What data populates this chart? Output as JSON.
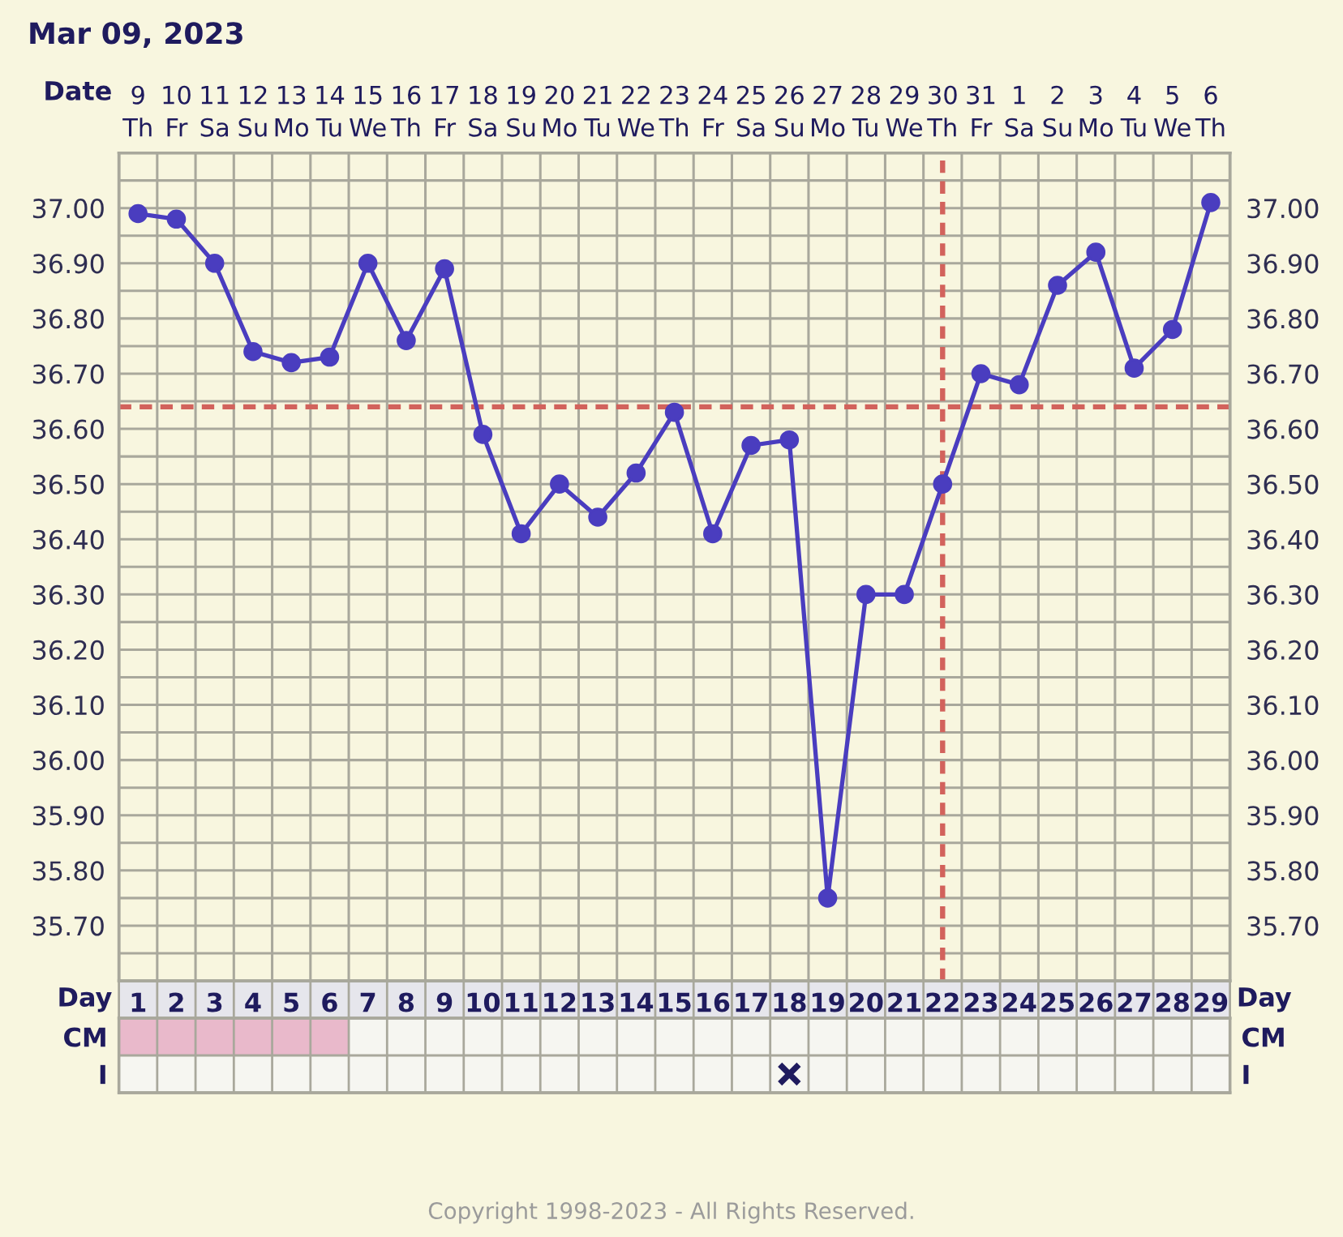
{
  "chart_data": [
    {
      "type": "line",
      "title": "Mar 09, 2023",
      "xlabel": "Day",
      "x2label": "Date",
      "x": [
        1,
        2,
        3,
        4,
        5,
        6,
        7,
        8,
        9,
        10,
        11,
        12,
        13,
        14,
        15,
        16,
        17,
        18,
        19,
        20,
        21,
        22,
        23,
        24,
        25,
        26,
        27,
        28,
        29
      ],
      "series": [
        {
          "color": "#4a3dbf",
          "values": [
            36.99,
            36.98,
            36.9,
            36.74,
            36.72,
            36.73,
            36.9,
            36.76,
            36.89,
            36.59,
            36.41,
            36.5,
            36.44,
            36.52,
            36.63,
            36.41,
            36.57,
            36.58,
            35.75,
            36.3,
            36.3,
            36.5,
            36.7,
            36.68,
            36.86,
            36.92,
            36.71,
            36.78,
            37.01
          ]
        }
      ],
      "xlim": [
        0.5,
        29.5
      ],
      "xticks": [
        1,
        2,
        3,
        4,
        5,
        6,
        7,
        8,
        9,
        10,
        11,
        12,
        13,
        14,
        15,
        16,
        17,
        18,
        19,
        20,
        21,
        22,
        23,
        24,
        25,
        26,
        27,
        28,
        29
      ],
      "x2lim": [
        "2023-03-08T12:00",
        "2023-04-06T12:00"
      ],
      "x2ticks": [
        {
          "value": "2023-03-09",
          "label": "9\nTh"
        },
        {
          "value": "2023-03-10",
          "label": "10\nFr"
        },
        {
          "value": "2023-03-11",
          "label": "11\nSa"
        },
        {
          "value": "2023-03-12",
          "label": "12\nSu"
        },
        {
          "value": "2023-03-13",
          "label": "13\nMo"
        },
        {
          "value": "2023-03-14",
          "label": "14\nTu"
        },
        {
          "value": "2023-03-15",
          "label": "15\nWe"
        },
        {
          "value": "2023-03-16",
          "label": "16\nTh"
        },
        {
          "value": "2023-03-17",
          "label": "17\nFr"
        },
        {
          "value": "2023-03-18",
          "label": "18\nSa"
        },
        {
          "value": "2023-03-19",
          "label": "19\nSu"
        },
        {
          "value": "2023-03-20",
          "label": "20\nMo"
        },
        {
          "value": "2023-03-21",
          "label": "21\nTu"
        },
        {
          "value": "2023-03-22",
          "label": "22\nWe"
        },
        {
          "value": "2023-03-23",
          "label": "23\nTh"
        },
        {
          "value": "2023-03-24",
          "label": "24\nFr"
        },
        {
          "value": "2023-03-25",
          "label": "25\nSa"
        },
        {
          "value": "2023-03-26",
          "label": "26\nSu"
        },
        {
          "value": "2023-03-27",
          "label": "27\nMo"
        },
        {
          "value": "2023-03-28",
          "label": "28\nTu"
        },
        {
          "value": "2023-03-29",
          "label": "29\nWe"
        },
        {
          "value": "2023-03-30",
          "label": "30\nTh"
        },
        {
          "value": "2023-03-31",
          "label": "31\nFr"
        },
        {
          "value": "2023-04-01",
          "label": "1\nSa"
        },
        {
          "value": "2023-04-02",
          "label": "2\nSu"
        },
        {
          "value": "2023-04-03",
          "label": "3\nMo"
        },
        {
          "value": "2023-04-04",
          "label": "4\nTu"
        },
        {
          "value": "2023-04-05",
          "label": "5\nWe"
        },
        {
          "value": "2023-04-06",
          "label": "6\nTh"
        }
      ],
      "ylim": [
        35.6,
        37.1
      ],
      "yticks": [
        {
          "value": 35.65,
          "label": null
        },
        {
          "value": 35.7,
          "label": "35.70"
        },
        {
          "value": 35.75,
          "label": null
        },
        {
          "value": 35.8,
          "label": "35.80"
        },
        {
          "value": 35.85,
          "label": null
        },
        {
          "value": 35.9,
          "label": "35.90"
        },
        {
          "value": 35.95,
          "label": null
        },
        {
          "value": 36.0,
          "label": "36.00"
        },
        {
          "value": 36.05,
          "label": null
        },
        {
          "value": 36.1,
          "label": "36.10"
        },
        {
          "value": 36.15,
          "label": null
        },
        {
          "value": 36.2,
          "label": "36.20"
        },
        {
          "value": 36.25,
          "label": null
        },
        {
          "value": 36.3,
          "label": "36.30"
        },
        {
          "value": 36.35,
          "label": null
        },
        {
          "value": 36.4,
          "label": "36.40"
        },
        {
          "value": 36.45,
          "label": null
        },
        {
          "value": 36.5,
          "label": "36.50"
        },
        {
          "value": 36.55,
          "label": null
        },
        {
          "value": 36.6,
          "label": "36.60"
        },
        {
          "value": 36.65,
          "label": null
        },
        {
          "value": 36.7,
          "label": "36.70"
        },
        {
          "value": 36.75,
          "label": null
        },
        {
          "value": 36.8,
          "label": "36.80"
        },
        {
          "value": 36.85,
          "label": null
        },
        {
          "value": 36.9,
          "label": "36.90"
        },
        {
          "value": 36.95,
          "label": null
        },
        {
          "value": 37.0,
          "label": "37.00"
        },
        {
          "value": 37.05,
          "label": null
        }
      ],
      "y2lim": [
        35.6,
        37.1
      ],
      "y2ticks": [
        {
          "value": 35.65,
          "label": null
        },
        {
          "value": 35.7,
          "label": "35.70"
        },
        {
          "value": 35.75,
          "label": null
        },
        {
          "value": 35.8,
          "label": "35.80"
        },
        {
          "value": 35.85,
          "label": null
        },
        {
          "value": 35.9,
          "label": "35.90"
        },
        {
          "value": 35.95,
          "label": null
        },
        {
          "value": 36.0,
          "label": "36.00"
        },
        {
          "value": 36.05,
          "label": null
        },
        {
          "value": 36.1,
          "label": "36.10"
        },
        {
          "value": 36.15,
          "label": null
        },
        {
          "value": 36.2,
          "label": "36.20"
        },
        {
          "value": 36.25,
          "label": null
        },
        {
          "value": 36.3,
          "label": "36.30"
        },
        {
          "value": 36.35,
          "label": null
        },
        {
          "value": 36.4,
          "label": "36.40"
        },
        {
          "value": 36.45,
          "label": null
        },
        {
          "value": 36.5,
          "label": "36.50"
        },
        {
          "value": 36.55,
          "label": null
        },
        {
          "value": 36.6,
          "label": "36.60"
        },
        {
          "value": 36.65,
          "label": null
        },
        {
          "value": 36.7,
          "label": "36.70"
        },
        {
          "value": 36.75,
          "label": null
        },
        {
          "value": 36.8,
          "label": "36.80"
        },
        {
          "value": 36.85,
          "label": null
        },
        {
          "value": 36.9,
          "label": "36.90"
        },
        {
          "value": 36.95,
          "label": null
        },
        {
          "value": 37.0,
          "label": "37.00"
        },
        {
          "value": 37.05,
          "label": null
        }
      ],
      "ref_lines": [
        {
          "axis": "y",
          "value": 36.64,
          "color": "#d2625c",
          "line_style": "dashed"
        },
        {
          "axis": "x",
          "value": 22,
          "color": "#d2625c",
          "line_style": "dashed"
        }
      ],
      "grid": true,
      "marker": "circle",
      "line_style": "solid",
      "annotations": [
        "Copyright 1998-2023 - All Rights Reserved."
      ]
    },
    {
      "type": "bar",
      "orientation": "horizontal",
      "categories": [
        "CM",
        "I"
      ],
      "y2_categories": [
        "CM",
        "I"
      ],
      "series": [
        {
          "color": "#e9b9cb",
          "values": [
            6,
            null
          ],
          "base": [
            0.5,
            null
          ]
        },
        {
          "type": "scatter",
          "color": "#1f1b5e",
          "x": [
            "I"
          ],
          "values": [
            18
          ],
          "marker": "cross"
        }
      ],
      "xlim": [
        0.5,
        29.5
      ],
      "xticks": [
        1,
        2,
        3,
        4,
        5,
        6,
        7,
        8,
        9,
        10,
        11,
        12,
        13,
        14,
        15,
        16,
        17,
        18,
        19,
        20,
        21,
        22,
        23,
        24,
        25,
        26,
        27,
        28,
        29
      ],
      "tick_labels": "y",
      "grid": true
    }
  ]
}
